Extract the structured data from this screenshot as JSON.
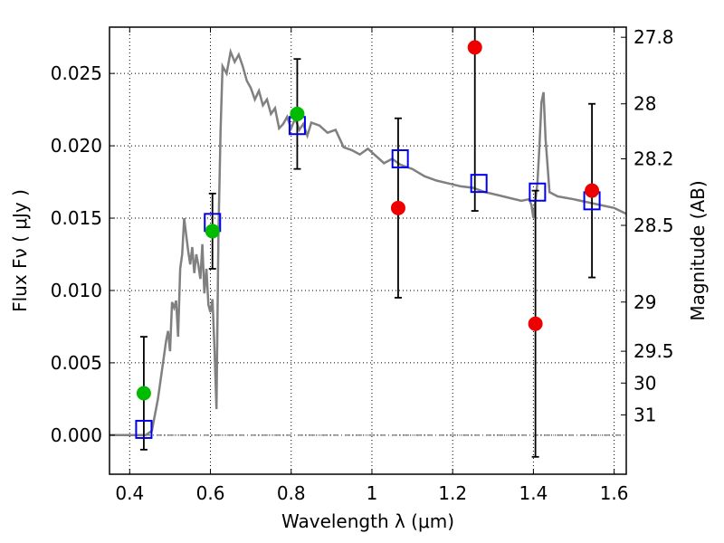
{
  "chart_data": {
    "type": "scatter",
    "xlabel": "Wavelength  λ (μm)",
    "ylabel": "Flux  Fν  ( μJy )",
    "ylabel_right": "Magnitude (AB)",
    "xlim": [
      0.35,
      1.63
    ],
    "ylim": [
      -0.0027,
      0.0282
    ],
    "xticks": [
      0.4,
      0.6,
      0.8,
      1.0,
      1.2,
      1.4,
      1.6
    ],
    "xtick_labels": [
      "0.4",
      "0.6",
      "0.8",
      "1",
      "1.2",
      "1.4",
      "1.6"
    ],
    "yticks": [
      0.0,
      0.005,
      0.01,
      0.015,
      0.02,
      0.025
    ],
    "ytick_labels": [
      "0.000",
      "0.005",
      "0.010",
      "0.015",
      "0.020",
      "0.025"
    ],
    "right_ticks": [
      {
        "label": "27.8",
        "flux": 0.0275
      },
      {
        "label": "28",
        "flux": 0.0229
      },
      {
        "label": "28.2",
        "flux": 0.0191
      },
      {
        "label": "28.5",
        "flux": 0.0145
      },
      {
        "label": "29",
        "flux": 0.0092
      },
      {
        "label": "29.5",
        "flux": 0.0058
      },
      {
        "label": "30",
        "flux": 0.0036
      },
      {
        "label": "31",
        "flux": 0.0014
      }
    ],
    "grid": true,
    "series": [
      {
        "kind": "model_line",
        "color": "#808080",
        "x": [
          0.35,
          0.44,
          0.455,
          0.47,
          0.48,
          0.49,
          0.495,
          0.5,
          0.505,
          0.51,
          0.515,
          0.52,
          0.525,
          0.53,
          0.535,
          0.54,
          0.545,
          0.55,
          0.555,
          0.56,
          0.565,
          0.57,
          0.575,
          0.58,
          0.585,
          0.59,
          0.595,
          0.6,
          0.605,
          0.61,
          0.615,
          0.62,
          0.625,
          0.63,
          0.64,
          0.65,
          0.66,
          0.67,
          0.68,
          0.69,
          0.7,
          0.71,
          0.72,
          0.73,
          0.74,
          0.75,
          0.76,
          0.77,
          0.78,
          0.79,
          0.8,
          0.81,
          0.82,
          0.83,
          0.84,
          0.85,
          0.87,
          0.89,
          0.91,
          0.93,
          0.95,
          0.97,
          0.99,
          1.01,
          1.03,
          1.05,
          1.07,
          1.1,
          1.13,
          1.16,
          1.19,
          1.22,
          1.25,
          1.28,
          1.31,
          1.34,
          1.37,
          1.39,
          1.395,
          1.4,
          1.405,
          1.41,
          1.415,
          1.42,
          1.425,
          1.43,
          1.44,
          1.46,
          1.5,
          1.55,
          1.6,
          1.63
        ],
        "y": [
          0.0,
          0.0,
          0.0003,
          0.0025,
          0.0045,
          0.0065,
          0.0072,
          0.0058,
          0.0092,
          0.0088,
          0.0093,
          0.0068,
          0.0115,
          0.0125,
          0.015,
          0.0138,
          0.0127,
          0.0118,
          0.013,
          0.0112,
          0.0125,
          0.0118,
          0.0108,
          0.0132,
          0.0098,
          0.0115,
          0.009,
          0.0085,
          0.0094,
          0.006,
          0.0018,
          0.014,
          0.021,
          0.0255,
          0.025,
          0.0265,
          0.0258,
          0.0263,
          0.0255,
          0.0245,
          0.024,
          0.0232,
          0.0238,
          0.0228,
          0.0232,
          0.0222,
          0.0226,
          0.0212,
          0.0215,
          0.022,
          0.0212,
          0.0219,
          0.0211,
          0.0215,
          0.0207,
          0.0216,
          0.0214,
          0.0209,
          0.0211,
          0.0199,
          0.0197,
          0.0194,
          0.0198,
          0.0193,
          0.0188,
          0.0191,
          0.0187,
          0.0184,
          0.0179,
          0.0176,
          0.0174,
          0.0172,
          0.0171,
          0.0168,
          0.0166,
          0.0164,
          0.0162,
          0.0163,
          0.0159,
          0.015,
          0.0162,
          0.0175,
          0.02,
          0.023,
          0.0237,
          0.0205,
          0.0168,
          0.0165,
          0.0163,
          0.016,
          0.0157,
          0.0153
        ]
      },
      {
        "kind": "model_boxes",
        "color": "#0000ee",
        "x": [
          0.435,
          0.605,
          0.815,
          1.07,
          1.265,
          1.41,
          1.545
        ],
        "y": [
          0.0004,
          0.0147,
          0.0214,
          0.0191,
          0.0174,
          0.0168,
          0.0162
        ]
      },
      {
        "kind": "detections",
        "color": "#00bb00",
        "x": [
          0.435,
          0.605,
          0.815
        ],
        "y": [
          0.0029,
          0.0141,
          0.0222
        ],
        "yerr": [
          0.0039,
          0.0026,
          0.0038
        ]
      },
      {
        "kind": "low_significance",
        "color": "#ee0000",
        "x": [
          1.065,
          1.255,
          1.405,
          1.545
        ],
        "y": [
          0.0157,
          0.0268,
          0.0077,
          0.0169
        ],
        "yerr": [
          0.0062,
          0.0113,
          0.0092,
          0.006
        ]
      }
    ]
  }
}
